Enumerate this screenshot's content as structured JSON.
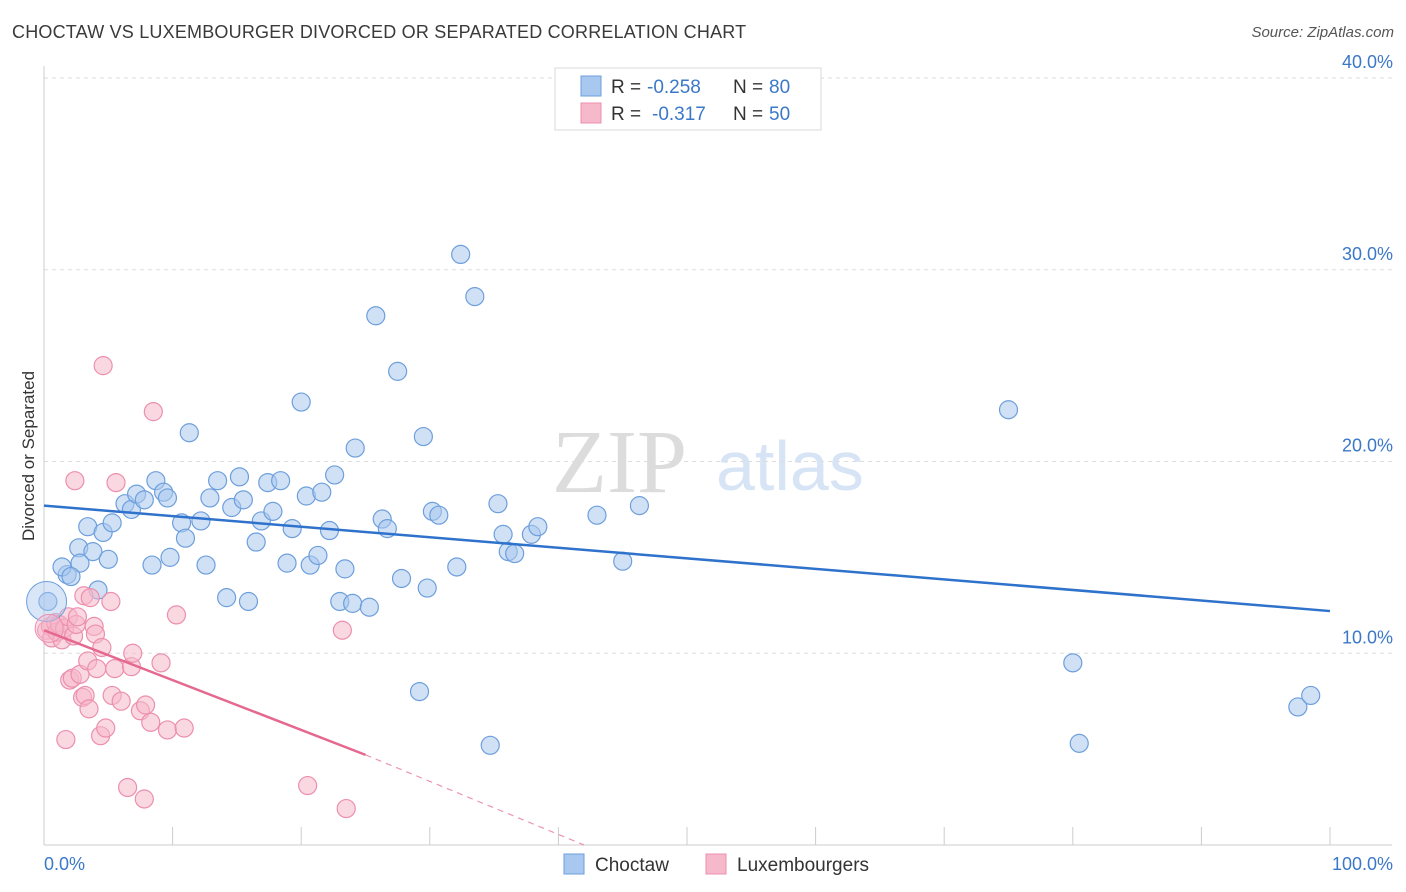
{
  "title": "CHOCTAW VS LUXEMBOURGER DIVORCED OR SEPARATED CORRELATION CHART",
  "source": "Source: ZipAtlas.com",
  "watermark": {
    "zip": "ZIP",
    "atlas": "atlas"
  },
  "colors": {
    "choctaw_fill": "#a9c8ef",
    "choctaw_stroke": "#6d9fdc",
    "choctaw_line": "#2f72cc",
    "lux_fill": "#f6b8cb",
    "lux_stroke": "#ec8fae",
    "lux_line": "#e5688f",
    "tick_text": "#3b78c8",
    "grid": "#dddddd"
  },
  "legend_top": {
    "rows": [
      {
        "r_label": "R =",
        "r_value": "-0.258",
        "n_label": "N =",
        "n_value": "80"
      },
      {
        "r_label": "R =",
        "r_value": "-0.317",
        "n_label": "N =",
        "n_value": "50"
      }
    ]
  },
  "chart_data": {
    "type": "scatter",
    "title": "CHOCTAW VS LUXEMBOURGER DIVORCED OR SEPARATED CORRELATION CHART",
    "xlabel": "",
    "ylabel": "Divorced or Separated",
    "xlim": [
      0,
      100
    ],
    "ylim": [
      0,
      40
    ],
    "x_tick_labels": [
      "0.0%",
      "100.0%"
    ],
    "y_ticks": [
      10,
      20,
      30,
      40
    ],
    "y_tick_labels": [
      "10.0%",
      "20.0%",
      "30.0%",
      "40.0%"
    ],
    "grid": true,
    "legend_position": "top-center",
    "series": [
      {
        "name": "Choctaw",
        "points": [
          [
            0.3,
            12.7
          ],
          [
            1.8,
            14.1
          ],
          [
            1.4,
            14.5
          ],
          [
            2.7,
            15.5
          ],
          [
            3.4,
            16.6
          ],
          [
            3.8,
            15.3
          ],
          [
            2.8,
            14.7
          ],
          [
            2.1,
            14.0
          ],
          [
            4.2,
            13.3
          ],
          [
            4.6,
            16.3
          ],
          [
            5.3,
            16.8
          ],
          [
            5.0,
            14.9
          ],
          [
            6.3,
            17.8
          ],
          [
            6.8,
            17.5
          ],
          [
            7.2,
            18.3
          ],
          [
            7.8,
            18.0
          ],
          [
            8.4,
            14.6
          ],
          [
            8.7,
            19.0
          ],
          [
            9.3,
            18.4
          ],
          [
            9.6,
            18.1
          ],
          [
            9.8,
            15.0
          ],
          [
            10.7,
            16.8
          ],
          [
            11.0,
            16.0
          ],
          [
            11.3,
            21.5
          ],
          [
            12.2,
            16.9
          ],
          [
            12.6,
            14.6
          ],
          [
            12.9,
            18.1
          ],
          [
            13.5,
            19.0
          ],
          [
            14.2,
            12.9
          ],
          [
            14.6,
            17.6
          ],
          [
            15.2,
            19.2
          ],
          [
            15.5,
            18.0
          ],
          [
            15.9,
            12.7
          ],
          [
            16.5,
            15.8
          ],
          [
            16.9,
            16.9
          ],
          [
            17.4,
            18.9
          ],
          [
            17.8,
            17.4
          ],
          [
            18.4,
            19.0
          ],
          [
            18.9,
            14.7
          ],
          [
            19.3,
            16.5
          ],
          [
            20.0,
            23.1
          ],
          [
            20.4,
            18.2
          ],
          [
            20.7,
            14.6
          ],
          [
            21.3,
            15.1
          ],
          [
            21.6,
            18.4
          ],
          [
            22.2,
            16.4
          ],
          [
            22.6,
            19.3
          ],
          [
            23.0,
            12.7
          ],
          [
            23.4,
            14.4
          ],
          [
            24.0,
            12.6
          ],
          [
            24.2,
            20.7
          ],
          [
            25.3,
            12.4
          ],
          [
            25.8,
            27.6
          ],
          [
            26.3,
            17.0
          ],
          [
            26.7,
            16.5
          ],
          [
            27.5,
            24.7
          ],
          [
            27.8,
            13.9
          ],
          [
            29.2,
            8.0
          ],
          [
            29.5,
            21.3
          ],
          [
            29.8,
            13.4
          ],
          [
            30.2,
            17.4
          ],
          [
            30.7,
            17.2
          ],
          [
            32.1,
            14.5
          ],
          [
            32.4,
            30.8
          ],
          [
            33.5,
            28.6
          ],
          [
            34.7,
            5.2
          ],
          [
            35.3,
            17.8
          ],
          [
            35.7,
            16.2
          ],
          [
            36.1,
            15.3
          ],
          [
            36.6,
            15.2
          ],
          [
            37.9,
            16.2
          ],
          [
            38.4,
            16.6
          ],
          [
            43.0,
            17.2
          ],
          [
            45.0,
            14.8
          ],
          [
            46.3,
            17.7
          ],
          [
            75.0,
            22.7
          ],
          [
            80.0,
            9.5
          ],
          [
            80.5,
            5.3
          ],
          [
            97.5,
            7.2
          ],
          [
            98.5,
            7.8
          ]
        ],
        "trend": {
          "x": [
            0,
            100
          ],
          "y": [
            17.7,
            12.2
          ]
        }
      },
      {
        "name": "Luxembourgers",
        "points": [
          [
            0.2,
            11.2
          ],
          [
            0.5,
            11.4
          ],
          [
            0.6,
            10.8
          ],
          [
            0.9,
            11.6
          ],
          [
            1.0,
            11.1
          ],
          [
            1.2,
            11.5
          ],
          [
            1.4,
            10.7
          ],
          [
            1.6,
            11.3
          ],
          [
            1.7,
            5.5
          ],
          [
            1.9,
            11.9
          ],
          [
            2.0,
            8.6
          ],
          [
            2.2,
            8.7
          ],
          [
            2.3,
            10.9
          ],
          [
            2.4,
            19.0
          ],
          [
            2.5,
            11.5
          ],
          [
            2.6,
            11.9
          ],
          [
            2.8,
            8.9
          ],
          [
            3.0,
            7.7
          ],
          [
            3.1,
            13.0
          ],
          [
            3.2,
            7.8
          ],
          [
            3.4,
            9.6
          ],
          [
            3.5,
            7.1
          ],
          [
            3.6,
            12.9
          ],
          [
            3.9,
            11.4
          ],
          [
            4.0,
            11.0
          ],
          [
            4.1,
            9.2
          ],
          [
            4.4,
            5.7
          ],
          [
            4.5,
            10.3
          ],
          [
            4.6,
            25.0
          ],
          [
            4.8,
            6.1
          ],
          [
            5.2,
            12.7
          ],
          [
            5.3,
            7.8
          ],
          [
            5.5,
            9.2
          ],
          [
            5.6,
            18.9
          ],
          [
            6.0,
            7.5
          ],
          [
            6.5,
            3.0
          ],
          [
            6.8,
            9.3
          ],
          [
            6.9,
            10.0
          ],
          [
            7.5,
            7.0
          ],
          [
            7.8,
            2.4
          ],
          [
            7.9,
            7.3
          ],
          [
            8.3,
            6.4
          ],
          [
            8.5,
            22.6
          ],
          [
            9.1,
            9.5
          ],
          [
            9.6,
            6.0
          ],
          [
            10.3,
            12.0
          ],
          [
            10.9,
            6.1
          ],
          [
            20.5,
            3.1
          ],
          [
            23.2,
            11.2
          ],
          [
            23.5,
            1.9
          ]
        ],
        "trend": {
          "x": [
            0,
            25
          ],
          "y": [
            11.2,
            4.7
          ]
        },
        "trend_extension": {
          "x": [
            25,
            42
          ],
          "y": [
            4.7,
            0.0
          ]
        }
      }
    ]
  },
  "legend_bottom": [
    "Choctaw",
    "Luxembourgers"
  ]
}
